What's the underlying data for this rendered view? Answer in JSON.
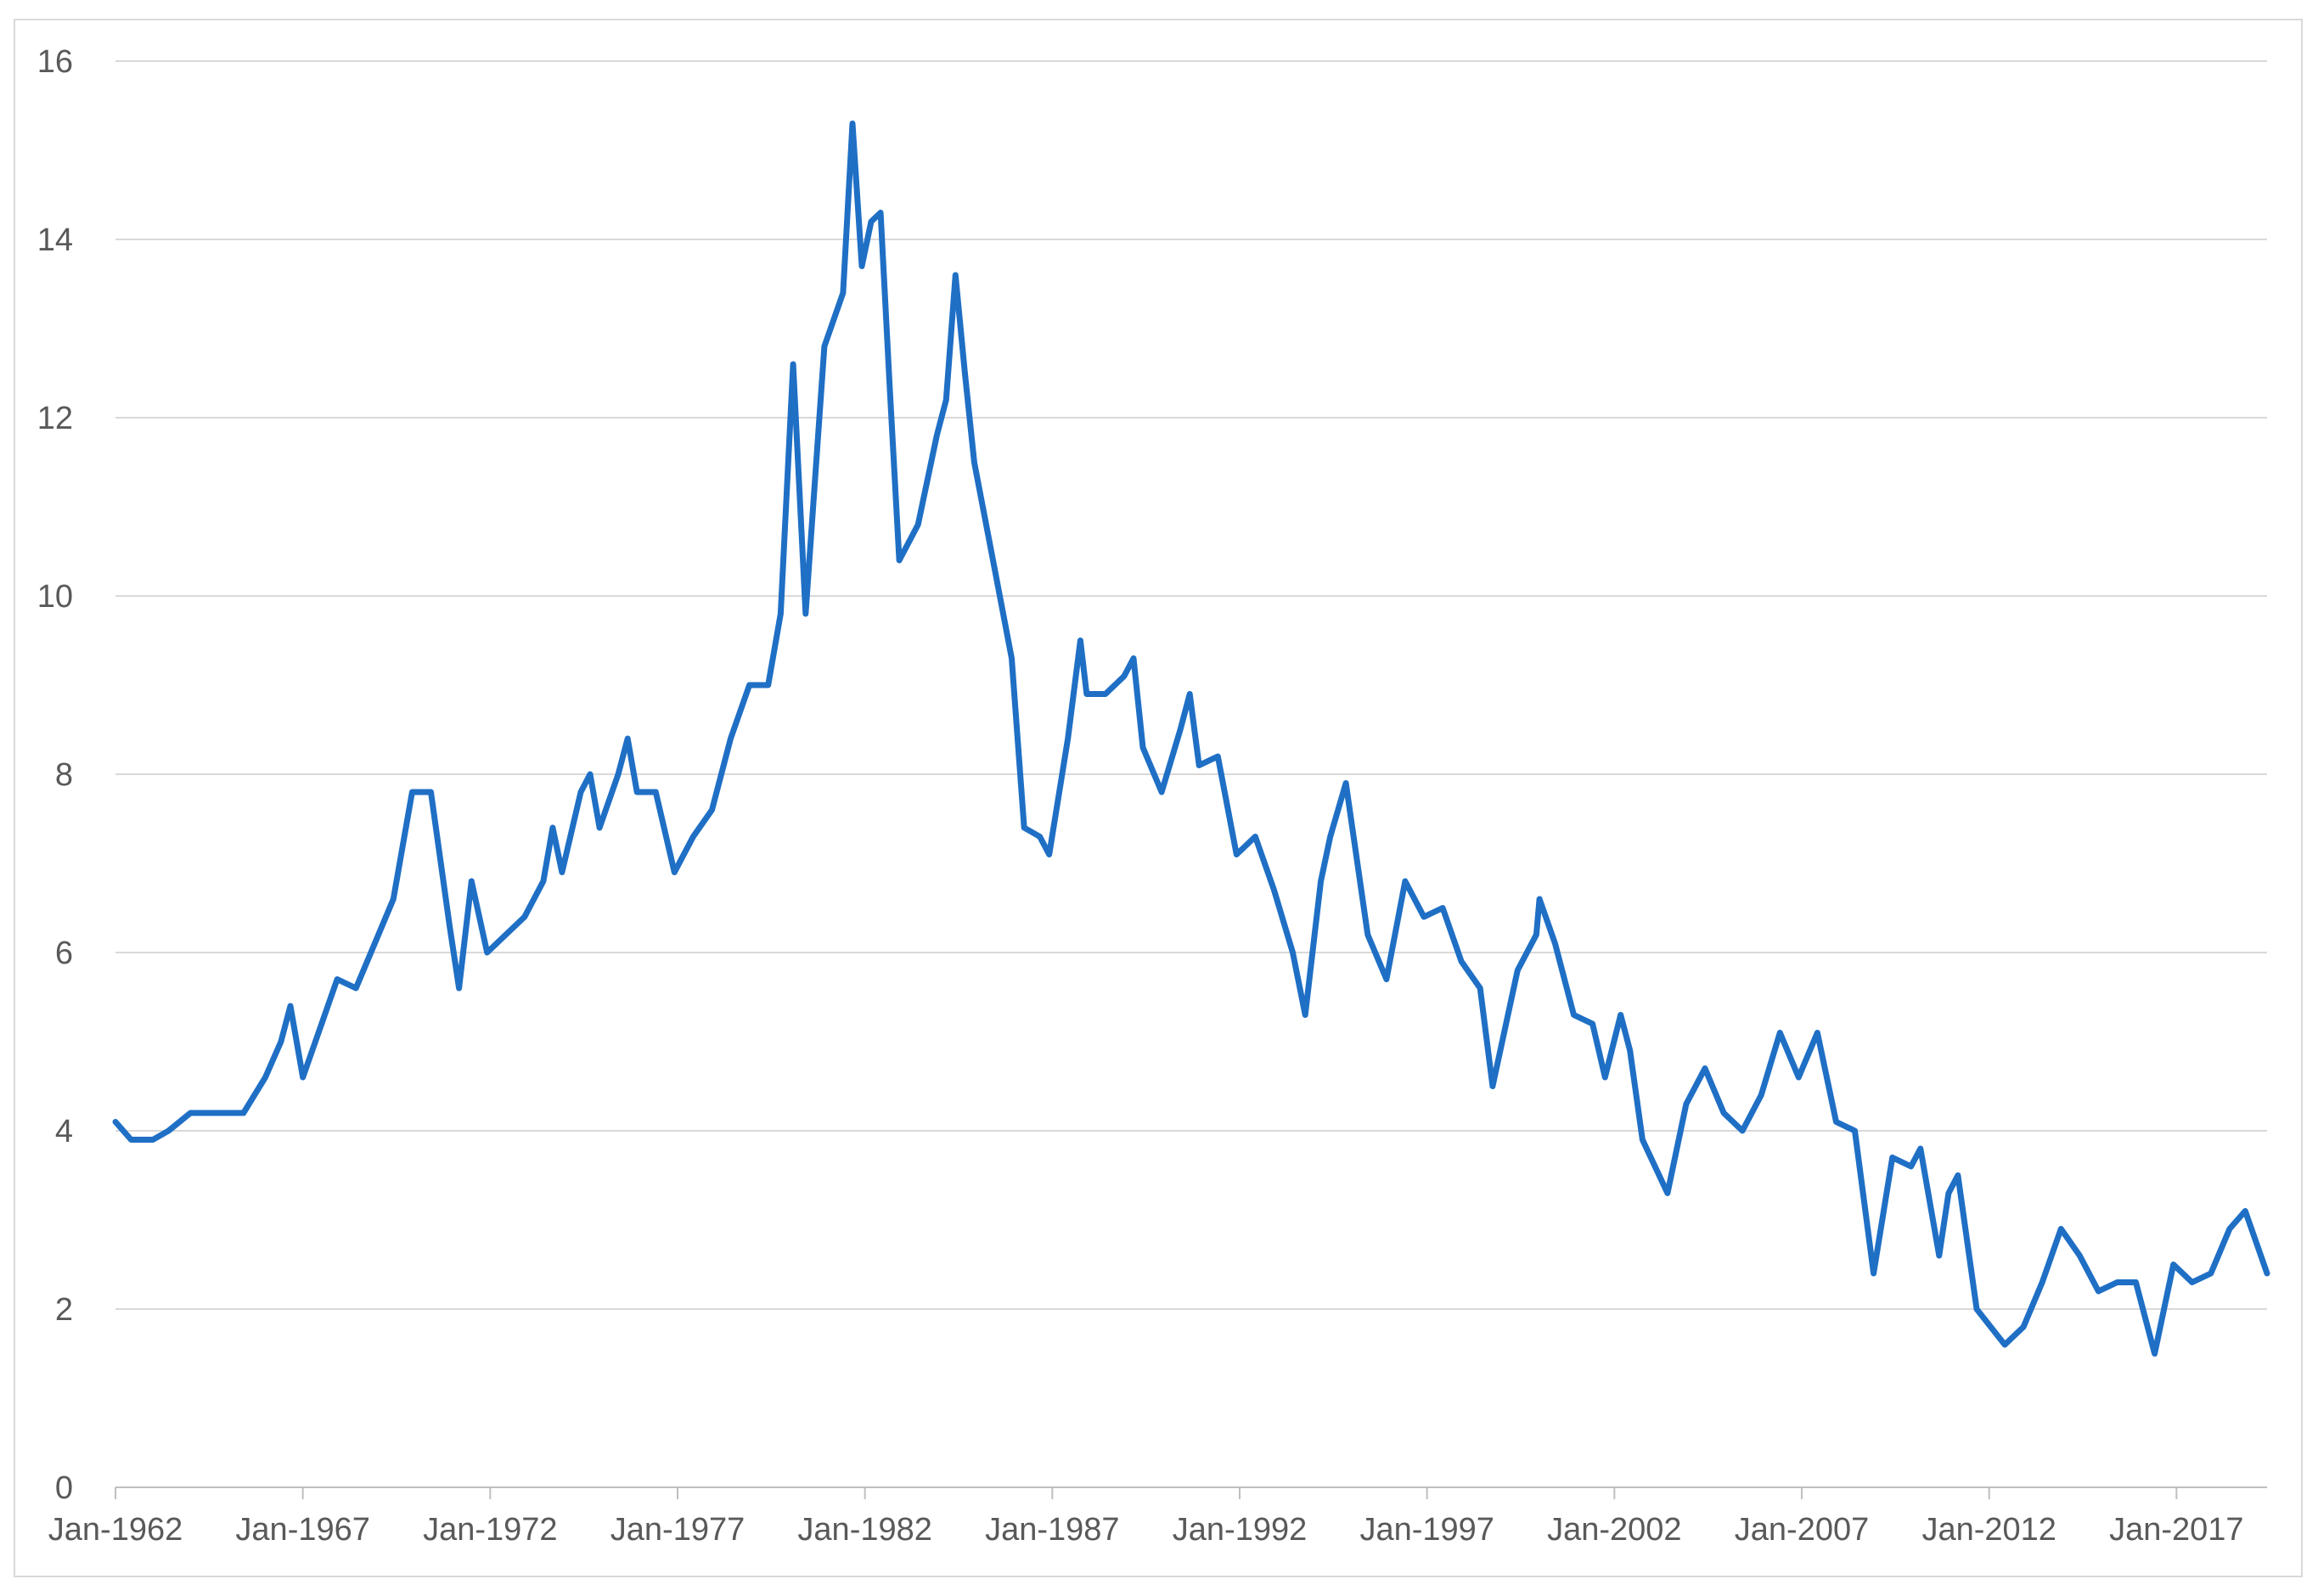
{
  "chart_data": {
    "type": "line",
    "title": "",
    "xlabel": "",
    "ylabel": "",
    "x_range": [
      "1962-01",
      "2019-06"
    ],
    "ylim": [
      0,
      16
    ],
    "y_ticks": [
      0,
      2,
      4,
      6,
      8,
      10,
      12,
      14,
      16
    ],
    "x_tick_labels": [
      "Jan-1962",
      "Jan-1967",
      "Jan-1972",
      "Jan-1977",
      "Jan-1982",
      "Jan-1987",
      "Jan-1992",
      "Jan-1997",
      "Jan-2002",
      "Jan-2007",
      "Jan-2012",
      "Jan-2017"
    ],
    "x_tick_dates": [
      "1962-01",
      "1967-01",
      "1972-01",
      "1977-01",
      "1982-01",
      "1987-01",
      "1992-01",
      "1997-01",
      "2002-01",
      "2007-01",
      "2012-01",
      "2017-01"
    ],
    "grid": "horizontal",
    "legend": "none",
    "series": [
      {
        "color": "#1f6fc5",
        "points": [
          [
            "1962-01",
            4.1
          ],
          [
            "1962-06",
            3.9
          ],
          [
            "1963-01",
            3.9
          ],
          [
            "1963-06",
            4.0
          ],
          [
            "1964-01",
            4.2
          ],
          [
            "1964-06",
            4.2
          ],
          [
            "1965-01",
            4.2
          ],
          [
            "1965-06",
            4.2
          ],
          [
            "1966-01",
            4.6
          ],
          [
            "1966-06",
            5.0
          ],
          [
            "1966-09",
            5.4
          ],
          [
            "1967-01",
            4.6
          ],
          [
            "1967-06",
            5.1
          ],
          [
            "1967-12",
            5.7
          ],
          [
            "1968-06",
            5.6
          ],
          [
            "1968-12",
            6.1
          ],
          [
            "1969-06",
            6.6
          ],
          [
            "1969-12",
            7.8
          ],
          [
            "1970-06",
            7.8
          ],
          [
            "1970-12",
            6.3
          ],
          [
            "1971-03",
            5.6
          ],
          [
            "1971-07",
            6.8
          ],
          [
            "1971-12",
            6.0
          ],
          [
            "1972-06",
            6.2
          ],
          [
            "1972-12",
            6.4
          ],
          [
            "1973-06",
            6.8
          ],
          [
            "1973-09",
            7.4
          ],
          [
            "1973-12",
            6.9
          ],
          [
            "1974-06",
            7.8
          ],
          [
            "1974-09",
            8.0
          ],
          [
            "1974-12",
            7.4
          ],
          [
            "1975-06",
            8.0
          ],
          [
            "1975-09",
            8.4
          ],
          [
            "1975-12",
            7.8
          ],
          [
            "1976-06",
            7.8
          ],
          [
            "1976-12",
            6.9
          ],
          [
            "1977-06",
            7.3
          ],
          [
            "1977-12",
            7.6
          ],
          [
            "1978-06",
            8.4
          ],
          [
            "1978-12",
            9.0
          ],
          [
            "1979-06",
            9.0
          ],
          [
            "1979-10",
            9.8
          ],
          [
            "1980-02",
            12.6
          ],
          [
            "1980-06",
            9.8
          ],
          [
            "1980-12",
            12.8
          ],
          [
            "1981-06",
            13.4
          ],
          [
            "1981-09",
            15.3
          ],
          [
            "1981-12",
            13.7
          ],
          [
            "1982-03",
            14.2
          ],
          [
            "1982-06",
            14.3
          ],
          [
            "1982-09",
            12.3
          ],
          [
            "1982-12",
            10.4
          ],
          [
            "1983-06",
            10.8
          ],
          [
            "1983-12",
            11.8
          ],
          [
            "1984-03",
            12.2
          ],
          [
            "1984-06",
            13.6
          ],
          [
            "1984-09",
            12.5
          ],
          [
            "1984-12",
            11.5
          ],
          [
            "1985-06",
            10.4
          ],
          [
            "1985-12",
            9.3
          ],
          [
            "1986-04",
            7.4
          ],
          [
            "1986-09",
            7.3
          ],
          [
            "1986-12",
            7.1
          ],
          [
            "1987-06",
            8.4
          ],
          [
            "1987-10",
            9.5
          ],
          [
            "1987-12",
            8.9
          ],
          [
            "1988-06",
            8.9
          ],
          [
            "1988-12",
            9.1
          ],
          [
            "1989-03",
            9.3
          ],
          [
            "1989-06",
            8.3
          ],
          [
            "1989-12",
            7.8
          ],
          [
            "1990-06",
            8.5
          ],
          [
            "1990-09",
            8.9
          ],
          [
            "1990-12",
            8.1
          ],
          [
            "1991-06",
            8.2
          ],
          [
            "1991-12",
            7.1
          ],
          [
            "1992-06",
            7.3
          ],
          [
            "1992-12",
            6.7
          ],
          [
            "1993-06",
            6.0
          ],
          [
            "1993-10",
            5.3
          ],
          [
            "1994-03",
            6.8
          ],
          [
            "1994-06",
            7.3
          ],
          [
            "1994-11",
            7.9
          ],
          [
            "1995-06",
            6.2
          ],
          [
            "1995-12",
            5.7
          ],
          [
            "1996-06",
            6.8
          ],
          [
            "1996-12",
            6.4
          ],
          [
            "1997-06",
            6.5
          ],
          [
            "1997-12",
            5.9
          ],
          [
            "1998-06",
            5.6
          ],
          [
            "1998-10",
            4.5
          ],
          [
            "1999-06",
            5.8
          ],
          [
            "1999-12",
            6.2
          ],
          [
            "2000-01",
            6.6
          ],
          [
            "2000-06",
            6.1
          ],
          [
            "2000-12",
            5.3
          ],
          [
            "2001-06",
            5.2
          ],
          [
            "2001-10",
            4.6
          ],
          [
            "2002-03",
            5.3
          ],
          [
            "2002-06",
            4.9
          ],
          [
            "2002-10",
            3.9
          ],
          [
            "2003-06",
            3.3
          ],
          [
            "2003-12",
            4.3
          ],
          [
            "2004-06",
            4.7
          ],
          [
            "2004-12",
            4.2
          ],
          [
            "2005-06",
            4.0
          ],
          [
            "2005-12",
            4.4
          ],
          [
            "2006-06",
            5.1
          ],
          [
            "2006-12",
            4.6
          ],
          [
            "2007-06",
            5.1
          ],
          [
            "2007-12",
            4.1
          ],
          [
            "2008-06",
            4.0
          ],
          [
            "2008-12",
            2.4
          ],
          [
            "2009-06",
            3.7
          ],
          [
            "2009-12",
            3.6
          ],
          [
            "2010-03",
            3.8
          ],
          [
            "2010-09",
            2.6
          ],
          [
            "2010-12",
            3.3
          ],
          [
            "2011-03",
            3.5
          ],
          [
            "2011-09",
            2.0
          ],
          [
            "2012-06",
            1.6
          ],
          [
            "2012-12",
            1.8
          ],
          [
            "2013-06",
            2.3
          ],
          [
            "2013-12",
            2.9
          ],
          [
            "2014-06",
            2.6
          ],
          [
            "2014-12",
            2.2
          ],
          [
            "2015-06",
            2.3
          ],
          [
            "2015-12",
            2.3
          ],
          [
            "2016-06",
            1.5
          ],
          [
            "2016-12",
            2.5
          ],
          [
            "2017-06",
            2.3
          ],
          [
            "2017-12",
            2.4
          ],
          [
            "2018-06",
            2.9
          ],
          [
            "2018-11",
            3.1
          ],
          [
            "2019-03",
            2.7
          ],
          [
            "2019-06",
            2.4
          ]
        ]
      }
    ]
  }
}
